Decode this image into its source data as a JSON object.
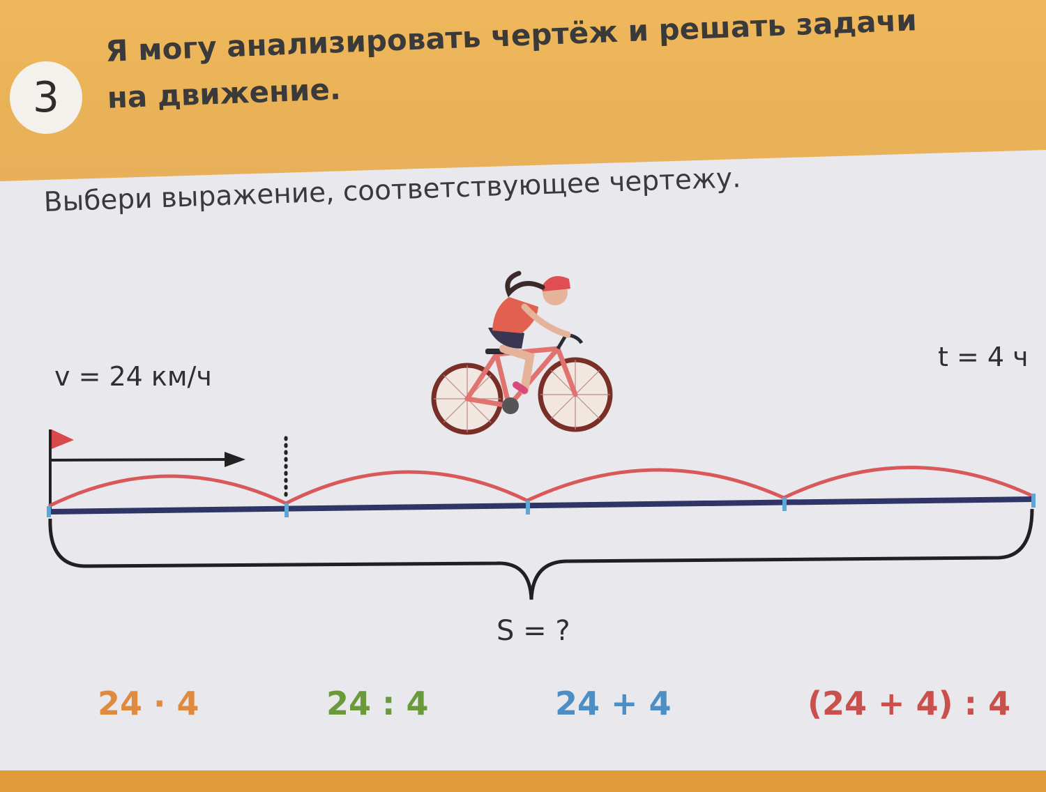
{
  "step": {
    "number": "3"
  },
  "goal": {
    "line1": "Я могу анализировать чертёж и решать задачи",
    "line2": "на движение."
  },
  "task": {
    "instruction": "Выбери выражение, соответствующее чертежу."
  },
  "diagram": {
    "speed_label": "v = 24 км/ч",
    "time_label": "t = 4 ч",
    "distance_label": "S = ?",
    "segments": 4
  },
  "answer_options": [
    {
      "text": "24 · 4",
      "color": "#e08a40"
    },
    {
      "text": "24 : 4",
      "color": "#6b9a3a"
    },
    {
      "text": "24 + 4",
      "color": "#4d8fc4"
    },
    {
      "text": "(24 + 4) : 4",
      "color": "#c9504c"
    }
  ],
  "colors": {
    "header_bg": "#eab257",
    "card_bg": "#e9e9ed",
    "arc_red": "#d9595a",
    "line_navy": "#2f3566",
    "tick_blue": "#5aa7d8"
  }
}
